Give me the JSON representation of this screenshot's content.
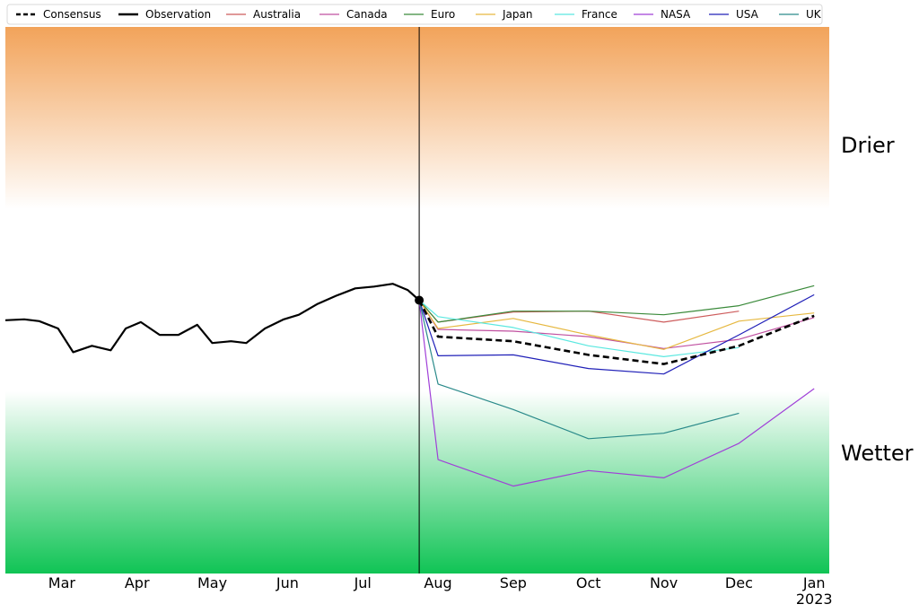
{
  "chart_data": {
    "type": "line",
    "x_axis": {
      "ticks": [
        {
          "month": 1,
          "label": "Mar"
        },
        {
          "month": 2,
          "label": "Apr"
        },
        {
          "month": 3,
          "label": "May"
        },
        {
          "month": 4,
          "label": "Jun"
        },
        {
          "month": 5,
          "label": "Jul"
        },
        {
          "month": 6,
          "label": "Aug"
        },
        {
          "month": 7,
          "label": "Sep"
        },
        {
          "month": 8,
          "label": "Oct"
        },
        {
          "month": 9,
          "label": "Nov"
        },
        {
          "month": 10,
          "label": "Dec"
        },
        {
          "month": 11,
          "label": "Jan",
          "sublabel": "2023"
        }
      ],
      "range": [
        0.25,
        11.2
      ]
    },
    "y_axis": {
      "range": [
        -3,
        3
      ],
      "tick_labels": "none"
    },
    "grid": false,
    "zones": [
      {
        "label": "Drier",
        "from": 1,
        "to": 3,
        "color": "#f2a35a"
      },
      {
        "label": "Wetter",
        "from": -3,
        "to": -1,
        "color": "#10c455"
      }
    ],
    "forecast_start": 5.75,
    "legend": {
      "placement": "top"
    },
    "series": [
      {
        "name": "Consensus",
        "color": "#000000",
        "dash": true,
        "points": [
          [
            5.75,
            0.0
          ],
          [
            6,
            -0.4
          ],
          [
            7,
            -0.45
          ],
          [
            8,
            -0.6
          ],
          [
            9,
            -0.7
          ],
          [
            10,
            -0.5
          ],
          [
            11,
            -0.17
          ]
        ]
      },
      {
        "name": "Observation",
        "color": "#000000",
        "dash": false,
        "points": [
          [
            0.25,
            -0.22
          ],
          [
            0.5,
            -0.21
          ],
          [
            0.7,
            -0.23
          ],
          [
            0.95,
            -0.31
          ],
          [
            1.15,
            -0.57
          ],
          [
            1.4,
            -0.5
          ],
          [
            1.65,
            -0.55
          ],
          [
            1.85,
            -0.31
          ],
          [
            2.05,
            -0.24
          ],
          [
            2.3,
            -0.38
          ],
          [
            2.55,
            -0.38
          ],
          [
            2.8,
            -0.27
          ],
          [
            3.0,
            -0.47
          ],
          [
            3.25,
            -0.45
          ],
          [
            3.45,
            -0.47
          ],
          [
            3.7,
            -0.31
          ],
          [
            3.95,
            -0.21
          ],
          [
            4.15,
            -0.16
          ],
          [
            4.4,
            -0.04
          ],
          [
            4.65,
            0.05
          ],
          [
            4.9,
            0.13
          ],
          [
            5.15,
            0.15
          ],
          [
            5.4,
            0.18
          ],
          [
            5.6,
            0.11
          ],
          [
            5.75,
            0.0
          ]
        ]
      },
      {
        "name": "Australia",
        "color": "#cd5c5c",
        "dash": false,
        "points": [
          [
            5.75,
            0.0
          ],
          [
            6,
            -0.24
          ],
          [
            7,
            -0.13
          ],
          [
            8,
            -0.12
          ],
          [
            9,
            -0.24
          ],
          [
            10,
            -0.12
          ]
        ]
      },
      {
        "name": "Canada",
        "color": "#c050a0",
        "dash": false,
        "points": [
          [
            5.75,
            0.0
          ],
          [
            6,
            -0.32
          ],
          [
            7,
            -0.34
          ],
          [
            8,
            -0.4
          ],
          [
            9,
            -0.53
          ],
          [
            10,
            -0.43
          ],
          [
            11,
            -0.19
          ]
        ]
      },
      {
        "name": "Euro",
        "color": "#3a8a3a",
        "dash": false,
        "points": [
          [
            5.75,
            0.0
          ],
          [
            6,
            -0.24
          ],
          [
            7,
            -0.12
          ],
          [
            8,
            -0.12
          ],
          [
            9,
            -0.16
          ],
          [
            10,
            -0.06
          ],
          [
            11,
            0.16
          ]
        ]
      },
      {
        "name": "Japan",
        "color": "#e6b840",
        "dash": false,
        "points": [
          [
            5.75,
            0.0
          ],
          [
            6,
            -0.31
          ],
          [
            7,
            -0.2
          ],
          [
            8,
            -0.38
          ],
          [
            9,
            -0.54
          ],
          [
            10,
            -0.23
          ],
          [
            11,
            -0.14
          ]
        ]
      },
      {
        "name": "France",
        "color": "#5ae8e0",
        "dash": false,
        "points": [
          [
            5.75,
            0.0
          ],
          [
            6,
            -0.18
          ],
          [
            7,
            -0.3
          ],
          [
            8,
            -0.5
          ],
          [
            9,
            -0.62
          ],
          [
            10,
            -0.52
          ]
        ]
      },
      {
        "name": "NASA",
        "color": "#a040d8",
        "dash": false,
        "points": [
          [
            5.75,
            0.0
          ],
          [
            6,
            -1.75
          ],
          [
            7,
            -2.04
          ],
          [
            8,
            -1.87
          ],
          [
            9,
            -1.95
          ],
          [
            10,
            -1.57
          ],
          [
            11,
            -0.97
          ]
        ]
      },
      {
        "name": "USA",
        "color": "#2020b8",
        "dash": false,
        "points": [
          [
            5.75,
            0.0
          ],
          [
            6,
            -0.61
          ],
          [
            7,
            -0.6
          ],
          [
            8,
            -0.75
          ],
          [
            9,
            -0.81
          ],
          [
            10,
            -0.38
          ],
          [
            11,
            0.06
          ]
        ]
      },
      {
        "name": "UK",
        "color": "#2a8a8a",
        "dash": false,
        "points": [
          [
            5.75,
            0.0
          ],
          [
            6,
            -0.92
          ],
          [
            7,
            -1.2
          ],
          [
            8,
            -1.52
          ],
          [
            9,
            -1.46
          ],
          [
            10,
            -1.24
          ]
        ]
      }
    ]
  }
}
